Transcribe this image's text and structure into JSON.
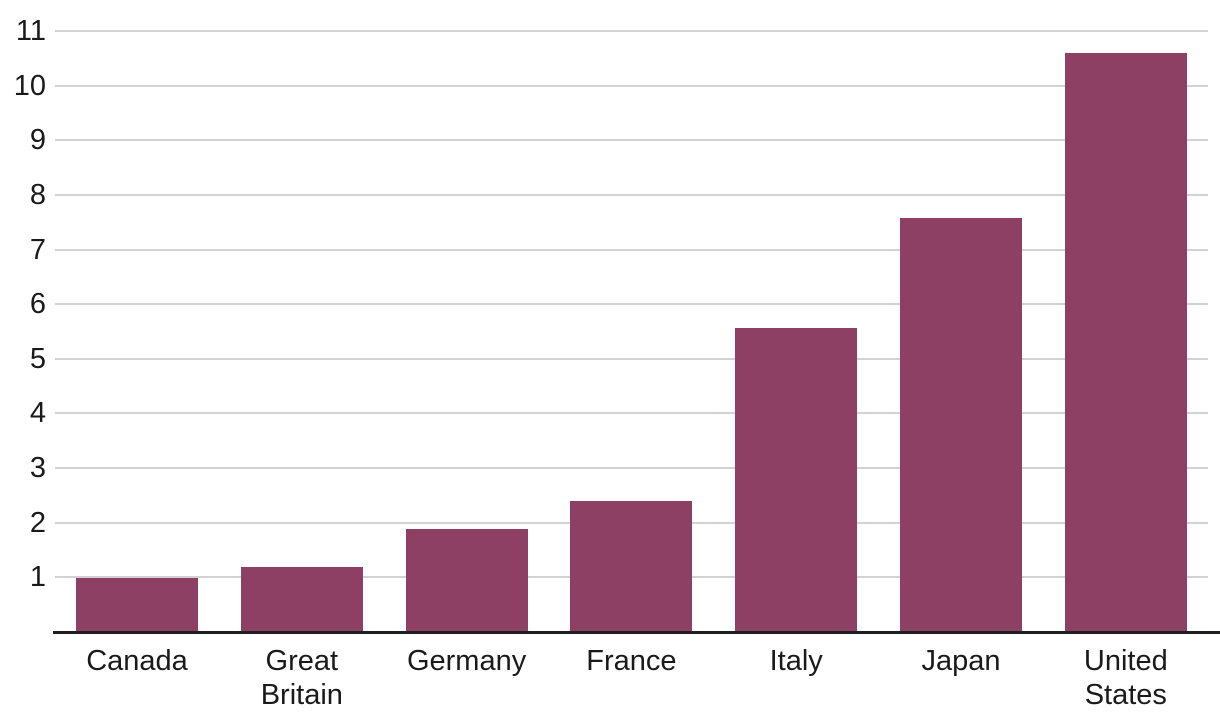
{
  "chart_data": {
    "type": "bar",
    "categories": [
      "Canada",
      "Great Britain",
      "Germany",
      "France",
      "Italy",
      "Japan",
      "United States"
    ],
    "category_lines": [
      [
        "Canada"
      ],
      [
        "Great",
        "Britain"
      ],
      [
        "Germany"
      ],
      [
        "France"
      ],
      [
        "Italy"
      ],
      [
        "Japan"
      ],
      [
        "United",
        "States"
      ]
    ],
    "values": [
      0.98,
      1.19,
      1.88,
      2.39,
      5.57,
      7.57,
      10.59
    ],
    "title": "",
    "xlabel": "",
    "ylabel": "",
    "ylim": [
      0,
      11
    ],
    "yticks": [
      1,
      2,
      3,
      4,
      5,
      6,
      7,
      8,
      9,
      10,
      11
    ],
    "grid": true,
    "legend": null,
    "colors": {
      "bar": "#8d4063",
      "gridline": "#d2d2d2",
      "axis_line": "#1f1f1f",
      "tick_text": "#1a1a1a"
    }
  }
}
